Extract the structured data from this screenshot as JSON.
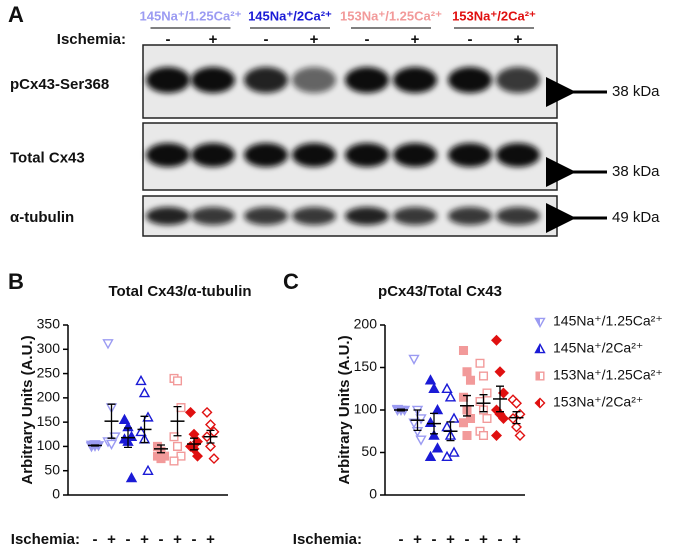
{
  "blot": {
    "panel": "A",
    "ischemia_label": "Ischemia:",
    "conditions": [
      {
        "name": "145Na⁺/1.25Ca²⁺",
        "color": "#9b9bf2",
        "ischemia": [
          "-",
          "+"
        ]
      },
      {
        "name": "145Na⁺/2Ca²⁺",
        "color": "#1b1bd6",
        "ischemia": [
          "-",
          "+"
        ]
      },
      {
        "name": "153Na⁺/1.25Ca²⁺",
        "color": "#f29a9a",
        "ischemia": [
          "-",
          "+"
        ]
      },
      {
        "name": "153Na⁺/2Ca²⁺",
        "color": "#e01010",
        "ischemia": [
          "-",
          "+"
        ]
      }
    ],
    "rows": [
      {
        "label": "pCx43-Ser368",
        "size": "38 kDa"
      },
      {
        "label": "Total Cx43",
        "size": "38 kDa"
      },
      {
        "label": "α-tubulin",
        "size": "49 kDa"
      }
    ]
  },
  "chart_data": [
    {
      "type": "dot-scatter",
      "panel": "B",
      "title": "Total Cx43/α-tubulin",
      "y_label": "Arbitrary Units (A.U.)",
      "x_label": "Ischemia:",
      "ylim": [
        0,
        350
      ],
      "yticks": [
        0,
        50,
        100,
        150,
        200,
        250,
        300,
        350
      ],
      "series": [
        {
          "color": "#9b9bf2",
          "marker": "triangle-down",
          "groups": [
            {
              "ischemia": "-",
              "values": [
                100,
                101,
                102,
                103,
                104
              ],
              "mean": 102,
              "sem": 1
            },
            {
              "ischemia": "+",
              "values": [
                312,
                180,
                120,
                110,
                105
              ],
              "mean": 152,
              "sem": 35
            }
          ]
        },
        {
          "color": "#1b1bd6",
          "marker": "triangle-up",
          "groups": [
            {
              "ischemia": "-",
              "values": [
                155,
                140,
                120,
                115,
                110,
                35
              ],
              "mean": 118,
              "sem": 20
            },
            {
              "ischemia": "+",
              "values": [
                235,
                210,
                160,
                130,
                115,
                50
              ],
              "mean": 135,
              "sem": 27
            }
          ]
        },
        {
          "color": "#f29a9a",
          "marker": "square",
          "groups": [
            {
              "ischemia": "-",
              "values": [
                100,
                90,
                80,
                80,
                75
              ],
              "mean": 95,
              "sem": 8
            },
            {
              "ischemia": "+",
              "values": [
                240,
                235,
                180,
                120,
                100,
                80,
                70
              ],
              "mean": 152,
              "sem": 30
            }
          ]
        },
        {
          "color": "#e01010",
          "marker": "diamond",
          "groups": [
            {
              "ischemia": "-",
              "values": [
                170,
                125,
                110,
                100,
                95,
                80
              ],
              "mean": 105,
              "sem": 12
            },
            {
              "ischemia": "+",
              "values": [
                170,
                145,
                130,
                120,
                100,
                75
              ],
              "mean": 120,
              "sem": 13
            }
          ]
        }
      ]
    },
    {
      "type": "dot-scatter",
      "panel": "C",
      "title": "pCx43/Total  Cx43",
      "y_label": "Arbitrary Units (A.U.)",
      "x_label": "Ischemia:",
      "ylim": [
        0,
        200
      ],
      "yticks": [
        0,
        50,
        100,
        150,
        200
      ],
      "legend": "right",
      "series": [
        {
          "name": "145Na⁺/1.25Ca²⁺",
          "color": "#9b9bf2",
          "marker": "triangle-down",
          "groups": [
            {
              "ischemia": "-",
              "values": [
                100,
                100,
                100,
                101
              ],
              "mean": 100,
              "sem": 1
            },
            {
              "ischemia": "+",
              "values": [
                160,
                100,
                90,
                85,
                75,
                65
              ],
              "mean": 88,
              "sem": 12
            }
          ]
        },
        {
          "name": "145Na⁺/2Ca²⁺",
          "color": "#1b1bd6",
          "marker": "triangle-up",
          "groups": [
            {
              "ischemia": "-",
              "values": [
                135,
                125,
                100,
                85,
                70,
                55,
                45
              ],
              "mean": 84,
              "sem": 12
            },
            {
              "ischemia": "+",
              "values": [
                125,
                115,
                90,
                80,
                70,
                50,
                45
              ],
              "mean": 75,
              "sem": 11
            }
          ]
        },
        {
          "name": "153Na⁺/1.25Ca²⁺",
          "color": "#f29a9a",
          "marker": "square",
          "groups": [
            {
              "ischemia": "-",
              "values": [
                170,
                145,
                135,
                115,
                100,
                90,
                85,
                70
              ],
              "mean": 105,
              "sem": 12
            },
            {
              "ischemia": "+",
              "values": [
                155,
                140,
                120,
                110,
                100,
                90,
                75,
                70
              ],
              "mean": 108,
              "sem": 10
            }
          ]
        },
        {
          "name": "153Na⁺/2Ca²⁺",
          "color": "#e01010",
          "marker": "diamond",
          "groups": [
            {
              "ischemia": "-",
              "values": [
                182,
                145,
                120,
                100,
                95,
                90,
                70
              ],
              "mean": 113,
              "sem": 15
            },
            {
              "ischemia": "+",
              "values": [
                112,
                108,
                95,
                90,
                80,
                70
              ],
              "mean": 91,
              "sem": 7
            }
          ]
        }
      ]
    }
  ]
}
